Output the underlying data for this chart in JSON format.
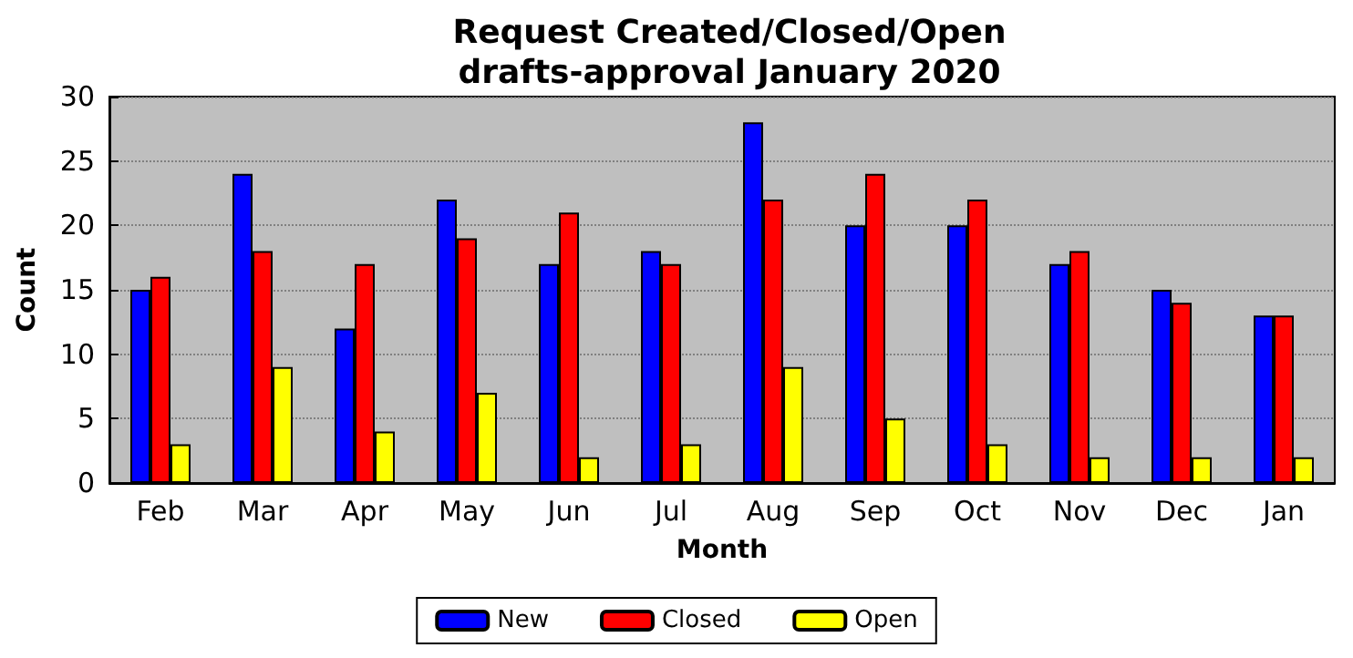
{
  "chart_data": {
    "type": "bar",
    "title": "Request Created/Closed/Open\ndrafts-approval January 2020",
    "xlabel": "Month",
    "ylabel": "Count",
    "categories": [
      "Feb",
      "Mar",
      "Apr",
      "May",
      "Jun",
      "Jul",
      "Aug",
      "Sep",
      "Oct",
      "Nov",
      "Dec",
      "Jan"
    ],
    "series": [
      {
        "name": "New",
        "color": "#0000ff",
        "values": [
          15,
          24,
          12,
          22,
          17,
          18,
          28,
          20,
          20,
          17,
          15,
          13
        ]
      },
      {
        "name": "Closed",
        "color": "#ff0000",
        "values": [
          16,
          18,
          17,
          19,
          21,
          17,
          22,
          24,
          22,
          18,
          14,
          13
        ]
      },
      {
        "name": "Open",
        "color": "#ffff00",
        "values": [
          3,
          9,
          4,
          7,
          2,
          3,
          9,
          5,
          3,
          2,
          2,
          2
        ]
      }
    ],
    "ylim": [
      0,
      30
    ],
    "yticks": [
      0,
      5,
      10,
      15,
      20,
      25,
      30
    ],
    "grid": "y",
    "legend": "bottom"
  }
}
